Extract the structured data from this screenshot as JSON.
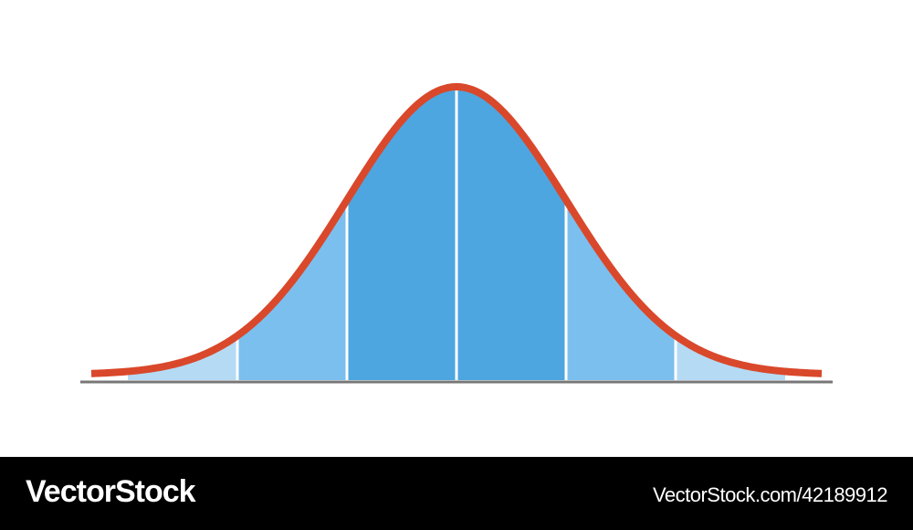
{
  "watermark": {
    "brand": "VectorStock",
    "id": "VectorStock.com/42189912"
  }
}
